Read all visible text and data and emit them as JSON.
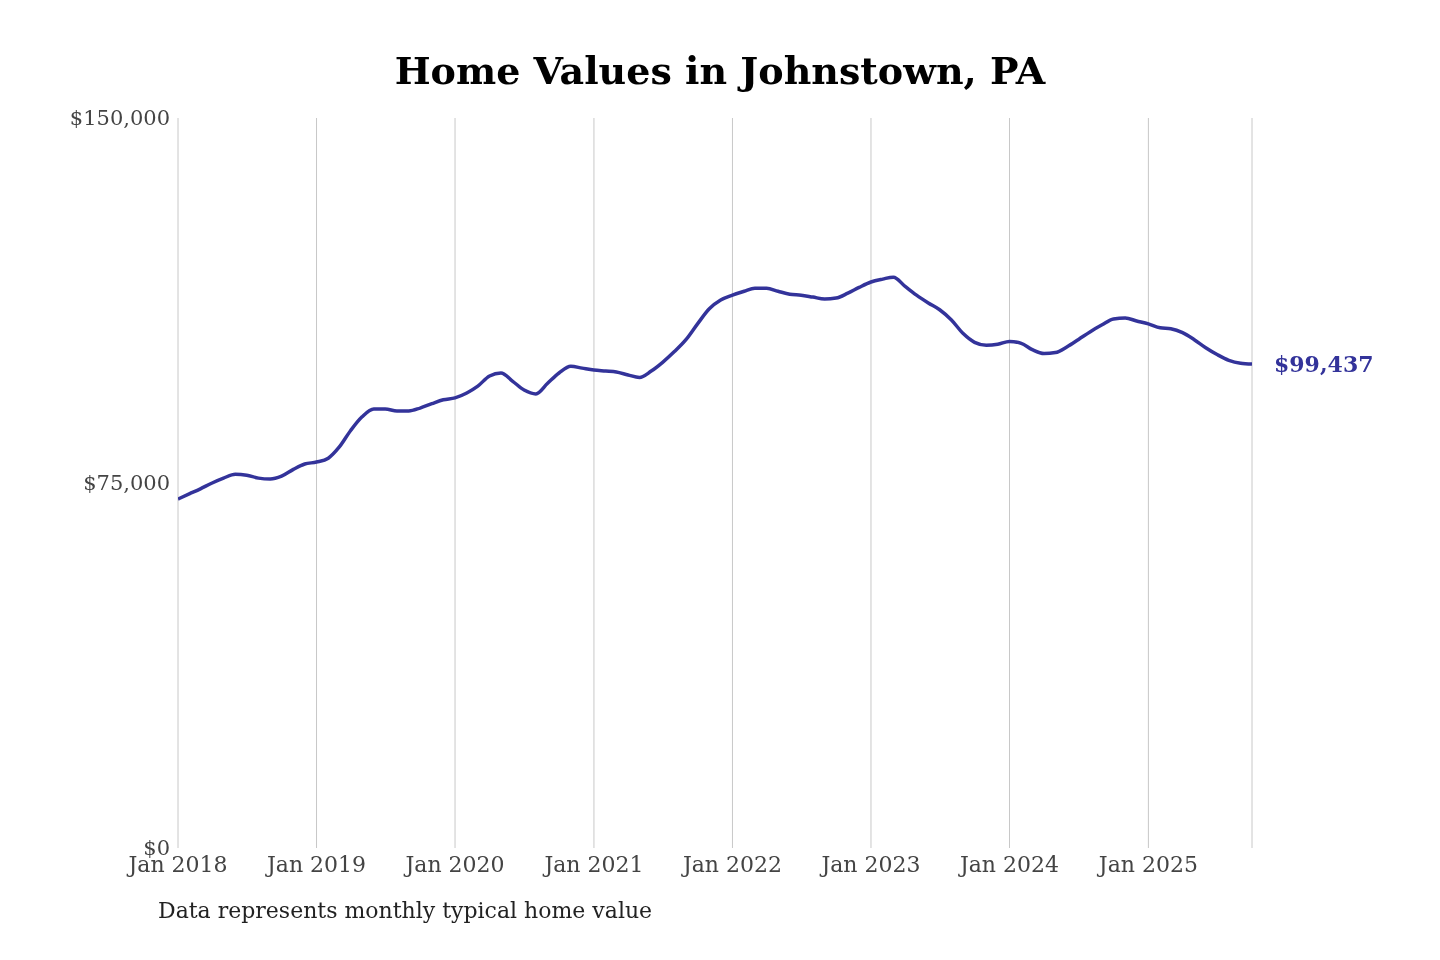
{
  "chart_data": {
    "type": "line",
    "title": "Home Values in Johnstown, PA",
    "x": [
      "2018-01",
      "2018-02",
      "2018-03",
      "2018-04",
      "2018-05",
      "2018-06",
      "2018-07",
      "2018-08",
      "2018-09",
      "2018-10",
      "2018-11",
      "2018-12",
      "2019-01",
      "2019-02",
      "2019-03",
      "2019-04",
      "2019-05",
      "2019-06",
      "2019-07",
      "2019-08",
      "2019-09",
      "2019-10",
      "2019-11",
      "2019-12",
      "2020-01",
      "2020-02",
      "2020-03",
      "2020-04",
      "2020-05",
      "2020-06",
      "2020-07",
      "2020-08",
      "2020-09",
      "2020-10",
      "2020-11",
      "2020-12",
      "2021-01",
      "2021-02",
      "2021-03",
      "2021-04",
      "2021-05",
      "2021-06",
      "2021-07",
      "2021-08",
      "2021-09",
      "2021-10",
      "2021-11",
      "2021-12",
      "2022-01",
      "2022-02",
      "2022-03",
      "2022-04",
      "2022-05",
      "2022-06",
      "2022-07",
      "2022-08",
      "2022-09",
      "2022-10",
      "2022-11",
      "2022-12",
      "2023-01",
      "2023-02",
      "2023-03",
      "2023-04",
      "2023-05",
      "2023-06",
      "2023-07",
      "2023-08",
      "2023-09",
      "2023-10",
      "2023-11",
      "2023-12",
      "2024-01",
      "2024-02",
      "2024-03",
      "2024-04",
      "2024-05",
      "2024-06",
      "2024-07",
      "2024-08",
      "2024-09",
      "2024-10",
      "2024-11",
      "2024-12",
      "2025-01",
      "2025-02",
      "2025-03",
      "2025-04",
      "2025-05",
      "2025-06",
      "2025-07",
      "2025-08",
      "2025-09",
      "2025-10"
    ],
    "series": [
      {
        "color": "#33339a",
        "values": [
          71700,
          72800,
          73800,
          75000,
          76000,
          76800,
          76600,
          76000,
          75800,
          76400,
          77800,
          78900,
          79300,
          80100,
          82300,
          85800,
          88600,
          90200,
          90200,
          89800,
          89800,
          90400,
          91300,
          92100,
          92500,
          93500,
          94900,
          97000,
          97600,
          95900,
          94100,
          93300,
          95500,
          97600,
          99000,
          98600,
          98200,
          98000,
          97800,
          97200,
          96700,
          98000,
          99800,
          102000,
          104500,
          107700,
          110800,
          112600,
          113600,
          114400,
          115000,
          115000,
          114400,
          113800,
          113600,
          113200,
          112800,
          113000,
          114000,
          115200,
          116300,
          116900,
          117300,
          115400,
          113600,
          112000,
          110600,
          108500,
          105700,
          103900,
          103300,
          103500,
          104100,
          103700,
          102400,
          101600,
          101800,
          103000,
          104500,
          106100,
          107500,
          108700,
          108900,
          108300,
          107700,
          106900,
          106700,
          105900,
          104500,
          102800,
          101400,
          100200,
          99600,
          99437
        ]
      }
    ],
    "xlim": [
      "2018-01",
      "2025-10"
    ],
    "xticks": [
      {
        "value": "2018-01",
        "label": "Jan 2018"
      },
      {
        "value": "2019-01",
        "label": "Jan 2019"
      },
      {
        "value": "2020-01",
        "label": "Jan 2020"
      },
      {
        "value": "2021-01",
        "label": "Jan 2021"
      },
      {
        "value": "2022-01",
        "label": "Jan 2022"
      },
      {
        "value": "2023-01",
        "label": "Jan 2023"
      },
      {
        "value": "2024-01",
        "label": "Jan 2024"
      },
      {
        "value": "2025-01",
        "label": "Jan 2025"
      }
    ],
    "ylim": [
      0,
      150000
    ],
    "yticks": [
      {
        "value": 0,
        "label": "$0"
      },
      {
        "value": 75000,
        "label": "$75,000"
      },
      {
        "value": 150000,
        "label": "$150,000"
      }
    ],
    "grid": "x",
    "marker": "none",
    "line_style": "solid",
    "annotations": [
      {
        "text": "$99,437",
        "x": "2025-10",
        "y": 99437
      },
      "Data represents monthly typical home value"
    ]
  }
}
